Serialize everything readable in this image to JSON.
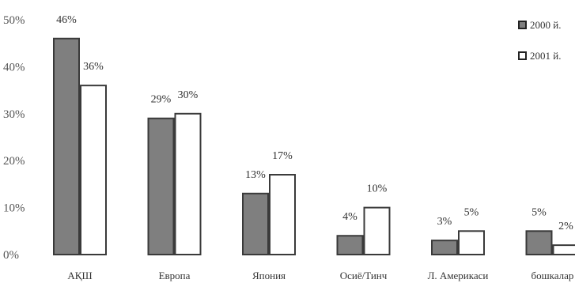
{
  "chart_data": {
    "type": "bar",
    "title": "",
    "xlabel": "",
    "ylabel": "",
    "ylim": [
      0,
      50
    ],
    "y_ticks": [
      "0%",
      "10%",
      "20%",
      "30%",
      "40%",
      "50%"
    ],
    "categories": [
      "АҚШ",
      "Европа",
      "Япония",
      "Осиё/Тинч",
      "Л. Америкаси",
      "бошкалар"
    ],
    "series": [
      {
        "name": "2000 й.",
        "color": "#7f7f7f",
        "values": [
          46,
          29,
          13,
          4,
          3,
          5
        ],
        "labels": [
          "46%",
          "29%",
          "13%",
          "4%",
          "3%",
          "5%"
        ]
      },
      {
        "name": "2001 й.",
        "color": "#ffffff",
        "values": [
          36,
          30,
          17,
          10,
          5,
          2
        ],
        "labels": [
          "36%",
          "30%",
          "17%",
          "10%",
          "5%",
          "2%"
        ]
      }
    ],
    "legend_position": "top-right",
    "grid": false
  }
}
